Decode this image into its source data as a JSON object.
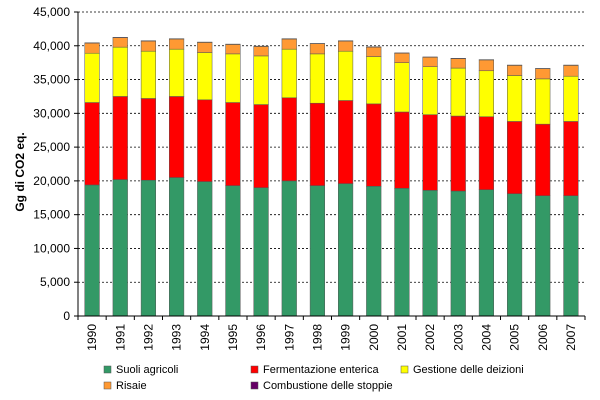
{
  "chart_data": {
    "type": "bar",
    "stacked": true,
    "title": "",
    "xlabel": "",
    "ylabel": "Gg di CO2 eq.",
    "ylim": [
      0,
      45000
    ],
    "yticks": [
      0,
      5000,
      10000,
      15000,
      20000,
      25000,
      30000,
      35000,
      40000,
      45000
    ],
    "ytick_labels": [
      "0",
      "5,000",
      "10,000",
      "15,000",
      "20,000",
      "25,000",
      "30,000",
      "35,000",
      "40,000",
      "45,000"
    ],
    "grid": "horizontal dashed",
    "legend_position": "bottom",
    "categories": [
      "1990",
      "1991",
      "1992",
      "1993",
      "1994",
      "1995",
      "1996",
      "1997",
      "1998",
      "1999",
      "2000",
      "2001",
      "2002",
      "2003",
      "2004",
      "2005",
      "2006",
      "2007"
    ],
    "series": [
      {
        "name": "Suoli agricoli",
        "color": "#339966",
        "values": [
          19400,
          20200,
          20100,
          20500,
          19900,
          19300,
          19000,
          20000,
          19300,
          19600,
          19200,
          18900,
          18600,
          18500,
          18700,
          18100,
          17800,
          17800
        ]
      },
      {
        "name": "Fermentazione enterica",
        "color": "#ff0000",
        "values": [
          12200,
          12300,
          12100,
          12000,
          12100,
          12300,
          12300,
          12300,
          12200,
          12300,
          12200,
          11300,
          11200,
          11100,
          10800,
          10700,
          10600,
          11000
        ]
      },
      {
        "name": "Gestione delle deizioni",
        "color": "#ffff00",
        "values": [
          7300,
          7300,
          7000,
          7000,
          7000,
          7200,
          7200,
          7200,
          7300,
          7300,
          7000,
          7300,
          7100,
          7100,
          6800,
          6800,
          6700,
          6700
        ]
      },
      {
        "name": "Risaie",
        "color": "#ff9933",
        "values": [
          1500,
          1400,
          1500,
          1500,
          1500,
          1400,
          1400,
          1500,
          1500,
          1500,
          1400,
          1400,
          1400,
          1400,
          1600,
          1500,
          1500,
          1600
        ]
      },
      {
        "name": "Combustione delle stoppie",
        "color": "#660066",
        "values": [
          50,
          50,
          50,
          50,
          50,
          50,
          50,
          50,
          50,
          50,
          50,
          50,
          50,
          50,
          50,
          50,
          50,
          50
        ]
      }
    ]
  }
}
